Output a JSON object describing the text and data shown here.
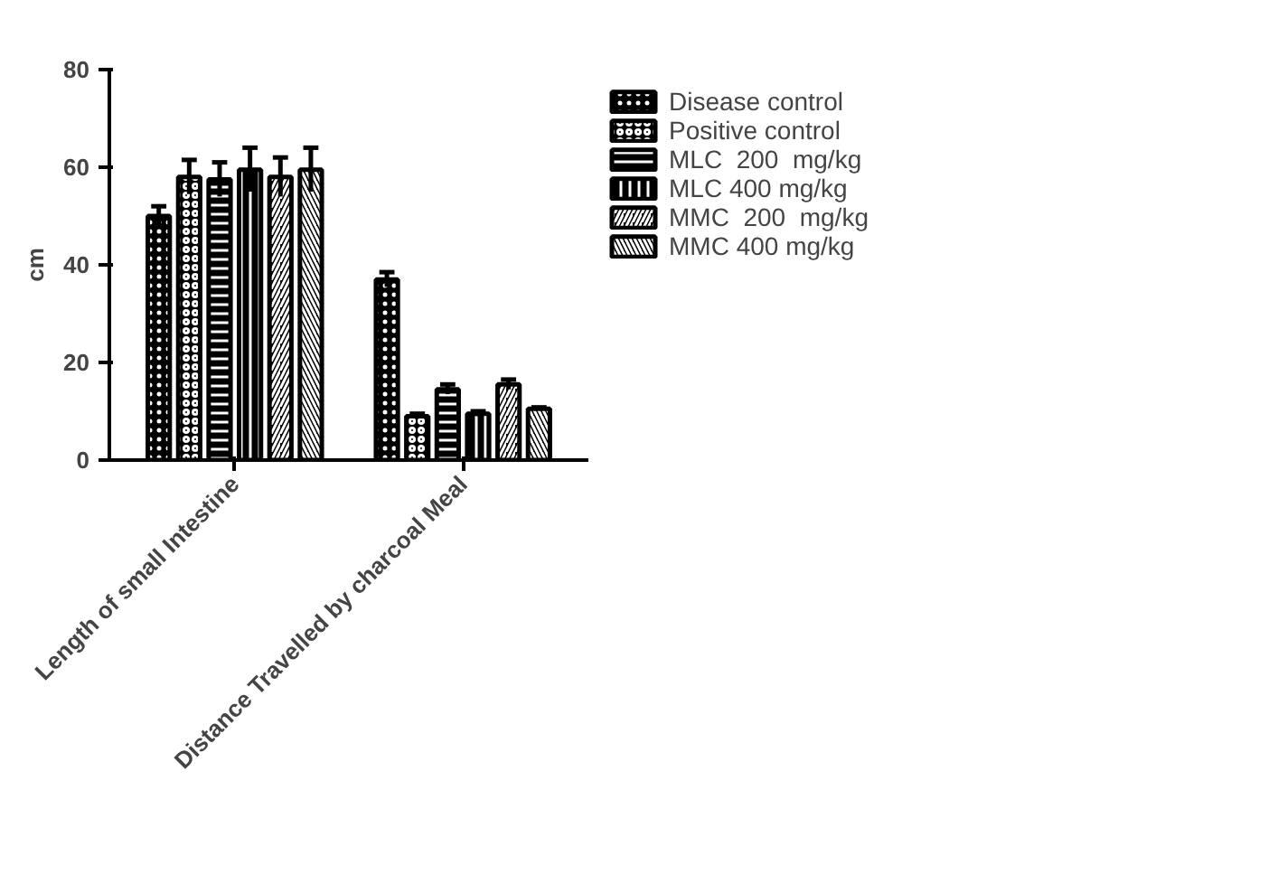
{
  "chart_data": {
    "type": "bar",
    "ylabel": "cm",
    "categories": [
      "Length of small Intestine",
      "Distance Travelled by charcoal Meal"
    ],
    "ylim": [
      0,
      80
    ],
    "yticks": [
      0,
      20,
      40,
      60,
      80
    ],
    "grid": false,
    "legend": "top right",
    "series": [
      {
        "name": "Disease control",
        "color": "#000000",
        "values": [
          50,
          37
        ],
        "errors": [
          2,
          1.5
        ]
      },
      {
        "name": "Positive control",
        "color": "#000000",
        "values": [
          58,
          9
        ],
        "errors": [
          3.5,
          0.5
        ]
      },
      {
        "name": "MLC  200  mg/kg",
        "color": "#000000",
        "values": [
          57.5,
          14.5
        ],
        "errors": [
          3.5,
          1
        ]
      },
      {
        "name": "MLC 400 mg/kg",
        "color": "#000000",
        "values": [
          59.5,
          9.5
        ],
        "errors": [
          4.5,
          0.5
        ]
      },
      {
        "name": "MMC  200  mg/kg",
        "color": "#000000",
        "values": [
          58,
          15.5
        ],
        "errors": [
          4,
          1
        ]
      },
      {
        "name": "MMC 400 mg/kg",
        "color": "#000000",
        "values": [
          59.5,
          10.5
        ],
        "errors": [
          4.5,
          0.3
        ]
      }
    ]
  }
}
